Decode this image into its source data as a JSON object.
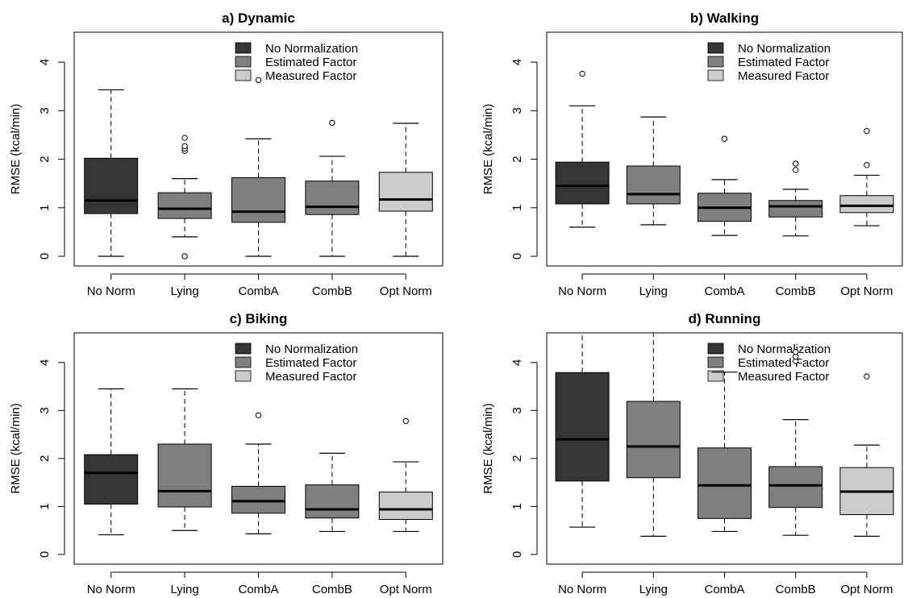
{
  "colors": {
    "no_norm": "#353535",
    "estimated": "#7f7f7f",
    "measured": "#cccccc"
  },
  "legend": [
    "No Normalization",
    "Estimated Factor",
    "Measured Factor"
  ],
  "chart_data": [
    {
      "type": "box",
      "title": "a) Dynamic",
      "ylabel": "RMSE (kcal/min)",
      "ylim": [
        0,
        4.5
      ],
      "yticks": [
        "0",
        "1",
        "2",
        "3",
        "4"
      ],
      "categories": [
        "No Norm",
        "Lying",
        "CombA",
        "CombB",
        "Opt Norm"
      ],
      "fills": [
        "no_norm",
        "estimated",
        "estimated",
        "estimated",
        "measured"
      ],
      "boxes": [
        {
          "min": 0.0,
          "q1": 0.88,
          "median": 1.15,
          "q3": 2.02,
          "max": 3.43,
          "outliers": []
        },
        {
          "min": 0.4,
          "q1": 0.78,
          "median": 0.98,
          "q3": 1.31,
          "max": 1.6,
          "outliers": [
            0.0,
            2.17,
            2.22,
            2.27,
            2.44
          ]
        },
        {
          "min": 0.0,
          "q1": 0.7,
          "median": 0.92,
          "q3": 1.62,
          "max": 2.42,
          "outliers": [
            3.63
          ]
        },
        {
          "min": 0.0,
          "q1": 0.86,
          "median": 1.02,
          "q3": 1.55,
          "max": 2.06,
          "outliers": [
            2.75
          ]
        },
        {
          "min": 0.0,
          "q1": 0.93,
          "median": 1.17,
          "q3": 1.73,
          "max": 2.74,
          "outliers": []
        }
      ]
    },
    {
      "type": "box",
      "title": "b) Walking",
      "ylabel": "RMSE (kcal/min)",
      "ylim": [
        0,
        4.5
      ],
      "yticks": [
        "0",
        "1",
        "2",
        "3",
        "4"
      ],
      "categories": [
        "No Norm",
        "Lying",
        "CombA",
        "CombB",
        "Opt Norm"
      ],
      "fills": [
        "no_norm",
        "estimated",
        "estimated",
        "estimated",
        "measured"
      ],
      "boxes": [
        {
          "min": 0.6,
          "q1": 1.08,
          "median": 1.45,
          "q3": 1.94,
          "max": 3.1,
          "outliers": [
            3.76
          ]
        },
        {
          "min": 0.65,
          "q1": 1.08,
          "median": 1.28,
          "q3": 1.86,
          "max": 2.87,
          "outliers": []
        },
        {
          "min": 0.43,
          "q1": 0.72,
          "median": 1.0,
          "q3": 1.3,
          "max": 1.58,
          "outliers": [
            2.42
          ]
        },
        {
          "min": 0.42,
          "q1": 0.81,
          "median": 1.03,
          "q3": 1.15,
          "max": 1.38,
          "outliers": [
            1.78,
            1.91
          ]
        },
        {
          "min": 0.63,
          "q1": 0.9,
          "median": 1.04,
          "q3": 1.25,
          "max": 1.67,
          "outliers": [
            1.88,
            2.58
          ]
        }
      ]
    },
    {
      "type": "box",
      "title": "c) Biking",
      "ylabel": "RMSE (kcal/min)",
      "ylim": [
        0,
        4.5
      ],
      "yticks": [
        "0",
        "1",
        "2",
        "3",
        "4"
      ],
      "categories": [
        "No Norm",
        "Lying",
        "CombA",
        "CombB",
        "Opt Norm"
      ],
      "fills": [
        "no_norm",
        "estimated",
        "estimated",
        "estimated",
        "measured"
      ],
      "boxes": [
        {
          "min": 0.41,
          "q1": 1.05,
          "median": 1.7,
          "q3": 2.08,
          "max": 3.45,
          "outliers": []
        },
        {
          "min": 0.5,
          "q1": 0.99,
          "median": 1.32,
          "q3": 2.3,
          "max": 3.45,
          "outliers": []
        },
        {
          "min": 0.43,
          "q1": 0.86,
          "median": 1.11,
          "q3": 1.42,
          "max": 2.3,
          "outliers": [
            2.9
          ]
        },
        {
          "min": 0.48,
          "q1": 0.76,
          "median": 0.94,
          "q3": 1.45,
          "max": 2.11,
          "outliers": []
        },
        {
          "min": 0.48,
          "q1": 0.73,
          "median": 0.94,
          "q3": 1.3,
          "max": 1.93,
          "outliers": [
            2.78
          ]
        }
      ]
    },
    {
      "type": "box",
      "title": "d) Running",
      "ylabel": "RMSE (kcal/min)",
      "ylim": [
        0,
        4.5
      ],
      "yticks": [
        "0",
        "1",
        "2",
        "3",
        "4"
      ],
      "categories": [
        "No Norm",
        "Lying",
        "CombA",
        "CombB",
        "Opt Norm"
      ],
      "fills": [
        "no_norm",
        "estimated",
        "estimated",
        "estimated",
        "measured"
      ],
      "boxes": [
        {
          "min": 0.57,
          "q1": 1.53,
          "median": 2.4,
          "q3": 3.79,
          "max": 4.7,
          "outliers": []
        },
        {
          "min": 0.38,
          "q1": 1.6,
          "median": 2.25,
          "q3": 3.19,
          "max": 4.7,
          "outliers": []
        },
        {
          "min": 0.48,
          "q1": 0.75,
          "median": 1.44,
          "q3": 2.22,
          "max": 3.8,
          "outliers": []
        },
        {
          "min": 0.4,
          "q1": 0.98,
          "median": 1.44,
          "q3": 1.83,
          "max": 2.81,
          "outliers": [
            4.03,
            4.12,
            4.22
          ]
        },
        {
          "min": 0.38,
          "q1": 0.83,
          "median": 1.31,
          "q3": 1.81,
          "max": 2.28,
          "outliers": [
            3.71
          ]
        }
      ]
    }
  ]
}
